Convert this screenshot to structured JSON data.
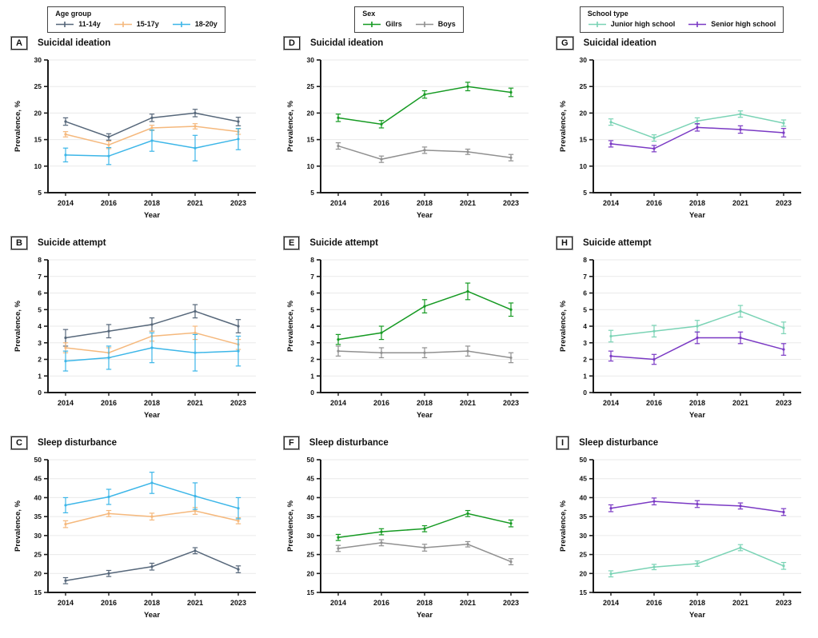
{
  "figure": {
    "ylabel": "Prevalence, %",
    "xlabel": "Year",
    "years": [
      "2014",
      "2016",
      "2018",
      "2021",
      "2023"
    ]
  },
  "legends": [
    {
      "title": "Age group",
      "entries": [
        {
          "label": "11-14y",
          "color": "#56677a",
          "icon": "line-marker-icon"
        },
        {
          "label": "15-17y",
          "color": "#f5b87c",
          "icon": "line-marker-icon"
        },
        {
          "label": "18-20y",
          "color": "#3cb6e8",
          "icon": "line-marker-icon"
        }
      ]
    },
    {
      "title": "Sex",
      "entries": [
        {
          "label": "Gilrs",
          "color": "#159a22",
          "icon": "line-marker-icon"
        },
        {
          "label": "Boys",
          "color": "#909090",
          "icon": "line-marker-icon"
        }
      ]
    },
    {
      "title": "School type",
      "entries": [
        {
          "label": "Junior high school",
          "color": "#7ad3b5",
          "icon": "line-marker-icon"
        },
        {
          "label": "Senior high school",
          "color": "#7a39c4",
          "icon": "line-marker-icon"
        }
      ]
    }
  ],
  "chart_data": [
    {
      "id": "A",
      "title": "Suicidal ideation",
      "type": "line",
      "xlabel": "Year",
      "ylabel": "Prevalence, %",
      "x": [
        "2014",
        "2016",
        "2018",
        "2021",
        "2023"
      ],
      "ylim": [
        5,
        30
      ],
      "ytick_step": 5,
      "grid": true,
      "legend_position": "top",
      "series": [
        {
          "name": "11-14y",
          "color": "#56677a",
          "values": [
            18.4,
            15.5,
            19.1,
            20.0,
            18.4
          ],
          "errors": [
            0.7,
            0.6,
            0.7,
            0.7,
            0.8
          ]
        },
        {
          "name": "15-17y",
          "color": "#f5b87c",
          "values": [
            16.0,
            14.0,
            17.2,
            17.5,
            16.5
          ],
          "errors": [
            0.5,
            0.7,
            0.5,
            0.5,
            0.5
          ]
        },
        {
          "name": "18-20y",
          "color": "#3cb6e8",
          "values": [
            12.1,
            11.9,
            14.8,
            13.4,
            15.1
          ],
          "errors": [
            1.3,
            1.6,
            2.0,
            2.4,
            2.0
          ]
        }
      ]
    },
    {
      "id": "D",
      "title": "Suicidal ideation",
      "type": "line",
      "xlabel": "Year",
      "ylabel": "Prevalence, %",
      "x": [
        "2014",
        "2016",
        "2018",
        "2021",
        "2023"
      ],
      "ylim": [
        5,
        30
      ],
      "ytick_step": 5,
      "grid": true,
      "legend_position": "top",
      "series": [
        {
          "name": "Gilrs",
          "color": "#159a22",
          "values": [
            19.1,
            17.9,
            23.5,
            25.0,
            23.9
          ],
          "errors": [
            0.7,
            0.7,
            0.7,
            0.8,
            0.8
          ]
        },
        {
          "name": "Boys",
          "color": "#909090",
          "values": [
            13.8,
            11.3,
            13.0,
            12.7,
            11.6
          ],
          "errors": [
            0.6,
            0.6,
            0.6,
            0.5,
            0.6
          ]
        }
      ]
    },
    {
      "id": "G",
      "title": "Suicidal ideation",
      "type": "line",
      "xlabel": "Year",
      "ylabel": "Prevalence, %",
      "x": [
        "2014",
        "2016",
        "2018",
        "2021",
        "2023"
      ],
      "ylim": [
        5,
        30
      ],
      "ytick_step": 5,
      "grid": true,
      "legend_position": "top",
      "series": [
        {
          "name": "Junior high school",
          "color": "#7ad3b5",
          "values": [
            18.3,
            15.3,
            18.5,
            19.8,
            18.1
          ],
          "errors": [
            0.6,
            0.6,
            0.6,
            0.6,
            0.6
          ]
        },
        {
          "name": "Senior high school",
          "color": "#7a39c4",
          "values": [
            14.2,
            13.3,
            17.3,
            16.9,
            16.3
          ],
          "errors": [
            0.6,
            0.6,
            0.7,
            0.7,
            0.8
          ]
        }
      ]
    },
    {
      "id": "B",
      "title": "Suicide attempt",
      "type": "line",
      "xlabel": "Year",
      "ylabel": "Prevalence, %",
      "x": [
        "2014",
        "2016",
        "2018",
        "2021",
        "2023"
      ],
      "ylim": [
        0,
        8
      ],
      "ytick_step": 1,
      "grid": true,
      "legend_position": "top",
      "series": [
        {
          "name": "11-14y",
          "color": "#56677a",
          "values": [
            3.3,
            3.7,
            4.1,
            4.9,
            4.0
          ],
          "errors": [
            0.5,
            0.4,
            0.4,
            0.4,
            0.4
          ]
        },
        {
          "name": "15-17y",
          "color": "#f5b87c",
          "values": [
            2.7,
            2.4,
            3.4,
            3.6,
            2.9
          ],
          "errors": [
            0.3,
            0.3,
            0.3,
            0.4,
            0.3
          ]
        },
        {
          "name": "18-20y",
          "color": "#3cb6e8",
          "values": [
            1.9,
            2.1,
            2.7,
            2.4,
            2.5
          ],
          "errors": [
            0.6,
            0.7,
            0.9,
            1.1,
            0.9
          ]
        }
      ]
    },
    {
      "id": "E",
      "title": "Suicide attempt",
      "type": "line",
      "xlabel": "Year",
      "ylabel": "Prevalence, %",
      "x": [
        "2014",
        "2016",
        "2018",
        "2021",
        "2023"
      ],
      "ylim": [
        0,
        8
      ],
      "ytick_step": 1,
      "grid": true,
      "legend_position": "top",
      "series": [
        {
          "name": "Gilrs",
          "color": "#159a22",
          "values": [
            3.2,
            3.6,
            5.2,
            6.1,
            5.0
          ],
          "errors": [
            0.3,
            0.4,
            0.4,
            0.5,
            0.4
          ]
        },
        {
          "name": "Boys",
          "color": "#909090",
          "values": [
            2.5,
            2.4,
            2.4,
            2.5,
            2.1
          ],
          "errors": [
            0.3,
            0.3,
            0.3,
            0.3,
            0.3
          ]
        }
      ]
    },
    {
      "id": "H",
      "title": "Suicide attempt",
      "type": "line",
      "xlabel": "Year",
      "ylabel": "Prevalence, %",
      "x": [
        "2014",
        "2016",
        "2018",
        "2021",
        "2023"
      ],
      "ylim": [
        0,
        8
      ],
      "ytick_step": 1,
      "grid": true,
      "legend_position": "top",
      "series": [
        {
          "name": "Junior high school",
          "color": "#7ad3b5",
          "values": [
            3.4,
            3.7,
            4.0,
            4.9,
            3.9
          ],
          "errors": [
            0.35,
            0.35,
            0.35,
            0.35,
            0.35
          ]
        },
        {
          "name": "Senior high school",
          "color": "#7a39c4",
          "values": [
            2.2,
            2.0,
            3.3,
            3.3,
            2.6
          ],
          "errors": [
            0.3,
            0.3,
            0.35,
            0.35,
            0.35
          ]
        }
      ]
    },
    {
      "id": "C",
      "title": "Sleep disturbance",
      "type": "line",
      "xlabel": "Year",
      "ylabel": "Prevalence, %",
      "x": [
        "2014",
        "2016",
        "2018",
        "2021",
        "2023"
      ],
      "ylim": [
        15,
        50
      ],
      "ytick_step": 5,
      "grid": true,
      "legend_position": "top",
      "series": [
        {
          "name": "11-14y",
          "color": "#56677a",
          "values": [
            18.1,
            20.0,
            21.8,
            26.0,
            21.1
          ],
          "errors": [
            0.8,
            0.8,
            0.9,
            0.8,
            0.9
          ]
        },
        {
          "name": "15-17y",
          "color": "#f5b87c",
          "values": [
            33.0,
            35.8,
            35.0,
            36.5,
            33.9
          ],
          "errors": [
            0.9,
            0.8,
            0.9,
            0.9,
            0.8
          ]
        },
        {
          "name": "18-20y",
          "color": "#3cb6e8",
          "values": [
            38.0,
            40.2,
            43.9,
            40.4,
            37.2
          ],
          "errors": [
            2.0,
            2.0,
            2.8,
            3.5,
            2.8
          ]
        }
      ]
    },
    {
      "id": "F",
      "title": "Sleep disturbance",
      "type": "line",
      "xlabel": "Year",
      "ylabel": "Prevalence, %",
      "x": [
        "2014",
        "2016",
        "2018",
        "2021",
        "2023"
      ],
      "ylim": [
        15,
        50
      ],
      "ytick_step": 5,
      "grid": true,
      "legend_position": "top",
      "series": [
        {
          "name": "Gilrs",
          "color": "#159a22",
          "values": [
            29.5,
            31.0,
            31.8,
            35.8,
            33.2
          ],
          "errors": [
            0.8,
            0.8,
            0.8,
            0.8,
            0.9
          ]
        },
        {
          "name": "Boys",
          "color": "#909090",
          "values": [
            26.6,
            28.1,
            26.8,
            27.7,
            23.1
          ],
          "errors": [
            0.8,
            0.8,
            0.9,
            0.7,
            0.8
          ]
        }
      ]
    },
    {
      "id": "I",
      "title": "Sleep disturbance",
      "type": "line",
      "xlabel": "Year",
      "ylabel": "Prevalence, %",
      "x": [
        "2014",
        "2016",
        "2018",
        "2021",
        "2023"
      ],
      "ylim": [
        15,
        50
      ],
      "ytick_step": 5,
      "grid": true,
      "legend_position": "top",
      "series": [
        {
          "name": "Junior high school",
          "color": "#7ad3b5",
          "values": [
            19.9,
            21.7,
            22.6,
            26.8,
            22.0
          ],
          "errors": [
            0.8,
            0.7,
            0.7,
            0.8,
            0.9
          ]
        },
        {
          "name": "Senior high school",
          "color": "#7a39c4",
          "values": [
            37.2,
            39.0,
            38.3,
            37.8,
            36.2
          ],
          "errors": [
            0.9,
            0.9,
            0.9,
            0.8,
            0.9
          ]
        }
      ]
    }
  ]
}
